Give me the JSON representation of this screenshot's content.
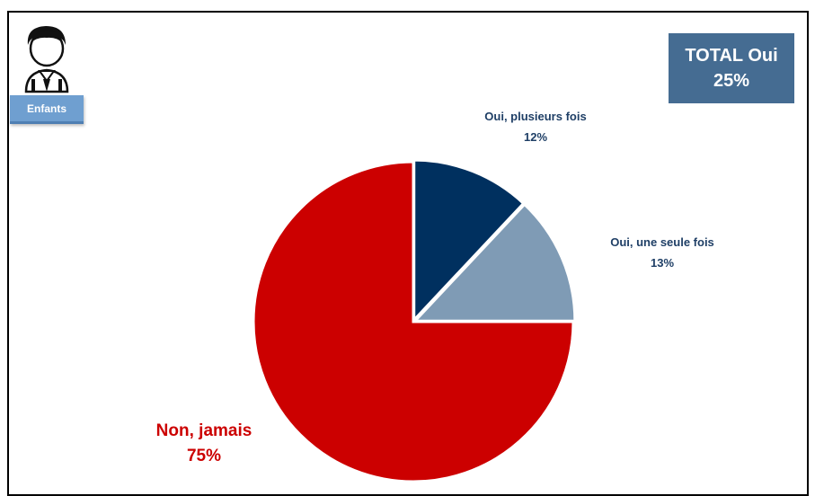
{
  "badge": {
    "label": "Enfants"
  },
  "total": {
    "title": "TOTAL Oui",
    "value": "25%"
  },
  "icon": {
    "avatar": "boy-avatar-icon"
  },
  "colors": {
    "plusieurs": "#00305f",
    "seule": "#7f9bb5",
    "jamais": "#cc0000",
    "label_blue": "#1f3f66",
    "label_red": "#cc0000"
  },
  "chart_data": {
    "type": "pie",
    "title": "",
    "slices": [
      {
        "label": "Oui, plusieurs fois",
        "value": 12,
        "display": "12%"
      },
      {
        "label": "Oui, une seule fois",
        "value": 13,
        "display": "13%"
      },
      {
        "label": "Non, jamais",
        "value": 75,
        "display": "75%"
      }
    ]
  }
}
